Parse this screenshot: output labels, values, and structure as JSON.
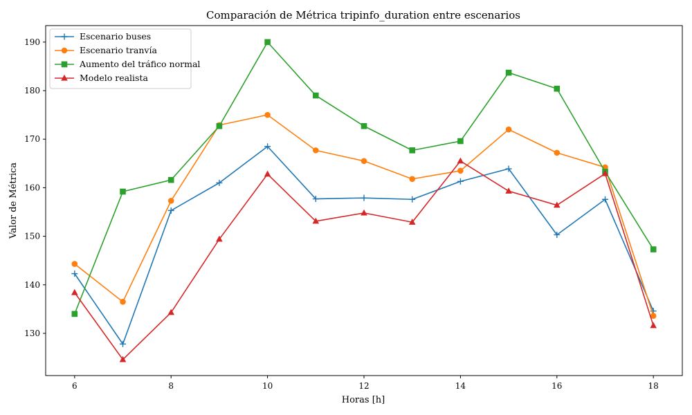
{
  "chart_data": {
    "type": "line",
    "title": "Comparación de Métrica tripinfo_duration entre escenarios",
    "xlabel": "Horas [h]",
    "ylabel": "Valor de Métrica",
    "x": [
      6,
      7,
      8,
      9,
      10,
      11,
      12,
      13,
      14,
      15,
      16,
      17,
      18
    ],
    "xlim": [
      5.4,
      18.6
    ],
    "ylim": [
      121.3,
      193.4
    ],
    "xticks": [
      6,
      8,
      10,
      12,
      14,
      16,
      18
    ],
    "yticks": [
      130,
      140,
      150,
      160,
      170,
      180,
      190
    ],
    "grid": false,
    "legend_position": "top-left",
    "series": [
      {
        "name": "Escenario buses",
        "color": "#1f77b4",
        "marker": "plus",
        "values": [
          142.3,
          127.8,
          155.3,
          161.0,
          168.5,
          157.7,
          157.9,
          157.6,
          161.3,
          163.9,
          150.3,
          157.6,
          134.6
        ]
      },
      {
        "name": "Escenario tranvía",
        "color": "#ff7f0e",
        "marker": "circle",
        "values": [
          144.3,
          136.5,
          157.3,
          172.9,
          175.0,
          167.7,
          165.5,
          161.8,
          163.5,
          172.0,
          167.2,
          164.2,
          133.6
        ]
      },
      {
        "name": "Aumento del tráfico normal",
        "color": "#2ca02c",
        "marker": "square",
        "values": [
          134.0,
          159.2,
          161.6,
          172.7,
          190.0,
          179.0,
          172.7,
          167.7,
          169.6,
          183.7,
          180.4,
          163.3,
          147.3
        ]
      },
      {
        "name": "Modelo realista",
        "color": "#d62728",
        "marker": "triangle",
        "values": [
          138.4,
          124.6,
          134.3,
          149.4,
          162.8,
          153.1,
          154.8,
          152.9,
          165.5,
          159.3,
          156.4,
          162.9,
          131.6
        ]
      }
    ]
  }
}
